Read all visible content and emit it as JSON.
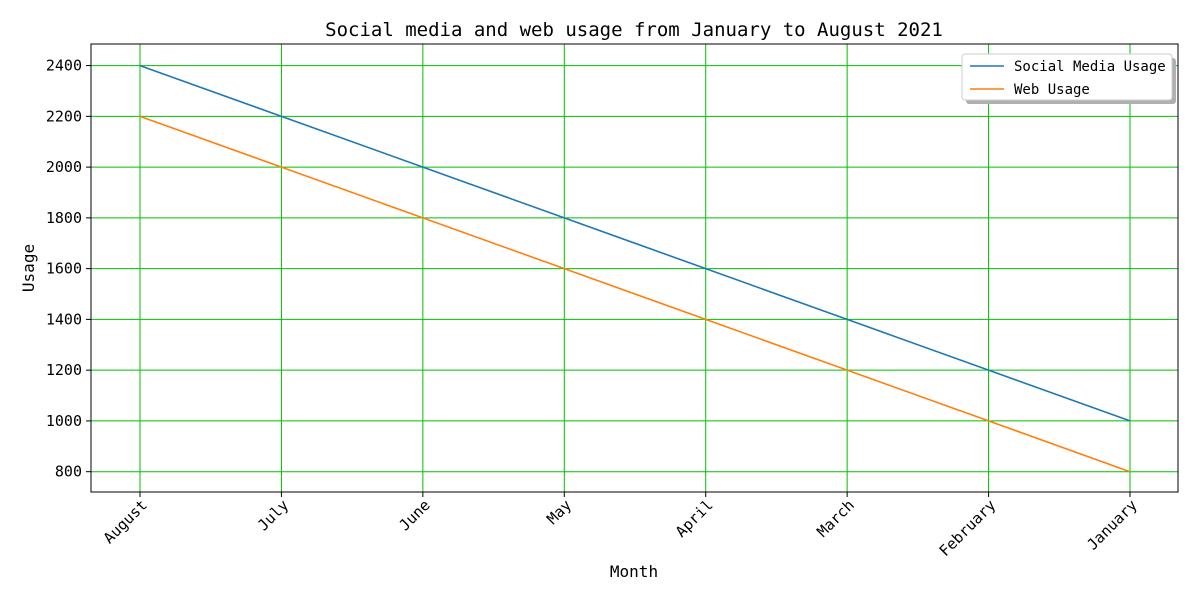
{
  "chart_data": {
    "type": "line",
    "title": "Social media and web usage from January to August 2021",
    "xlabel": "Month",
    "ylabel": "Usage",
    "categories": [
      "August",
      "July",
      "June",
      "May",
      "April",
      "March",
      "February",
      "January"
    ],
    "series": [
      {
        "name": "Social Media Usage",
        "color": "#1f77b4",
        "values": [
          2400,
          2200,
          2000,
          1800,
          1600,
          1400,
          1200,
          1000
        ]
      },
      {
        "name": "Web Usage",
        "color": "#ff7f0e",
        "values": [
          2200,
          2000,
          1800,
          1600,
          1400,
          1200,
          1000,
          800
        ]
      }
    ],
    "ylim": [
      720,
      2485
    ],
    "yticks": [
      800,
      1000,
      1200,
      1400,
      1600,
      1800,
      2000,
      2200,
      2400
    ],
    "grid": true,
    "grid_color": "#00c000",
    "legend_position": "top-right"
  }
}
